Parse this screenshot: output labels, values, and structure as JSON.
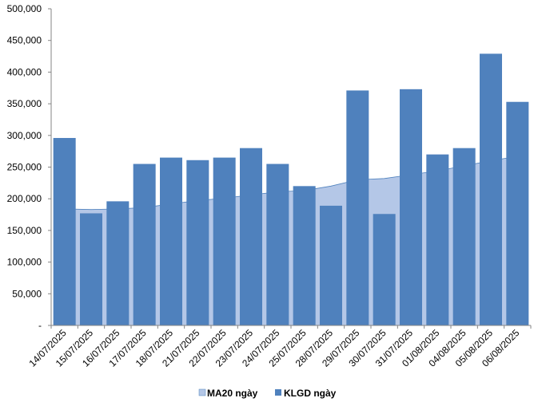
{
  "chart_data": {
    "type": "bar",
    "categories": [
      "14/07/2025",
      "15/07/2025",
      "16/07/2025",
      "17/07/2025",
      "18/07/2025",
      "21/07/2025",
      "22/07/2025",
      "23/07/2025",
      "24/07/2025",
      "25/07/2025",
      "28/07/2025",
      "29/07/2025",
      "30/07/2025",
      "31/07/2025",
      "01/08/2025",
      "04/08/2025",
      "05/08/2025",
      "06/08/2025"
    ],
    "y_tick_labels": [
      "-",
      "50,000",
      "100,000",
      "150,000",
      "200,000",
      "250,000",
      "300,000",
      "350,000",
      "400,000",
      "450,000",
      "500,000"
    ],
    "ylim": [
      0,
      500000
    ],
    "series": [
      {
        "name": "MA20 ngày",
        "type": "area",
        "color": "#b4c7e7",
        "line_color": "#4f81bd",
        "values": [
          184000,
          183000,
          184000,
          186000,
          192000,
          197000,
          201000,
          206000,
          211000,
          213000,
          220000,
          230000,
          232000,
          238000,
          244000,
          252000,
          260000,
          267000
        ]
      },
      {
        "name": "KLGD ngày",
        "type": "bar",
        "color": "#4f81bd",
        "values": [
          296000,
          177000,
          196000,
          255000,
          265000,
          261000,
          265000,
          280000,
          255000,
          220000,
          189000,
          371000,
          176000,
          373000,
          270000,
          280000,
          429000,
          353000
        ]
      }
    ],
    "legend_position": "bottom",
    "grid": false
  }
}
